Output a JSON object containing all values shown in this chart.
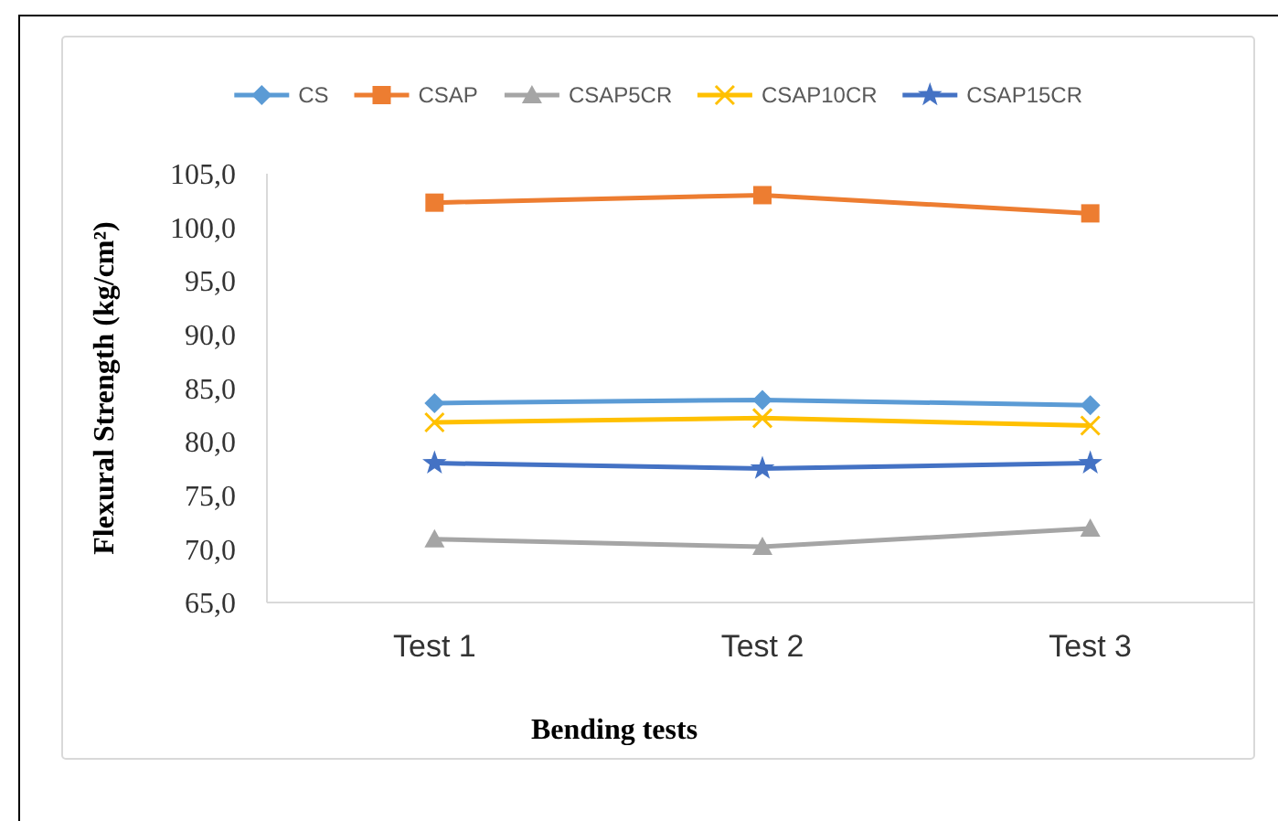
{
  "chart_data": {
    "type": "line",
    "xlabel": "Bending tests",
    "ylabel": "Flexural Strength (kg/cm²)",
    "categories": [
      "Test 1",
      "Test 2",
      "Test 3"
    ],
    "series": [
      {
        "name": "CS",
        "color": "#5b9bd5",
        "marker": "diamond",
        "values": [
          83.6,
          83.9,
          83.4
        ]
      },
      {
        "name": "CSAP",
        "color": "#ed7d31",
        "marker": "square",
        "values": [
          102.3,
          103.0,
          101.3
        ]
      },
      {
        "name": "CSAP5CR",
        "color": "#a5a5a5",
        "marker": "triangle",
        "values": [
          70.9,
          70.2,
          71.9
        ]
      },
      {
        "name": "CSAP10CR",
        "color": "#ffc000",
        "marker": "cross",
        "values": [
          81.8,
          82.2,
          81.5
        ]
      },
      {
        "name": "CSAP15CR",
        "color": "#4472c4",
        "marker": "star",
        "values": [
          78.0,
          77.5,
          78.0
        ]
      }
    ],
    "ylim": [
      65,
      105
    ],
    "yticks": [
      {
        "value": 65,
        "label": "65,0"
      },
      {
        "value": 70,
        "label": "70,0"
      },
      {
        "value": 75,
        "label": "75,0"
      },
      {
        "value": 80,
        "label": "80,0"
      },
      {
        "value": 85,
        "label": "85,0"
      },
      {
        "value": 90,
        "label": "90,0"
      },
      {
        "value": 95,
        "label": "95,0"
      },
      {
        "value": 100,
        "label": "100,0"
      },
      {
        "value": 105,
        "label": "105,0"
      }
    ],
    "legend": "top"
  }
}
